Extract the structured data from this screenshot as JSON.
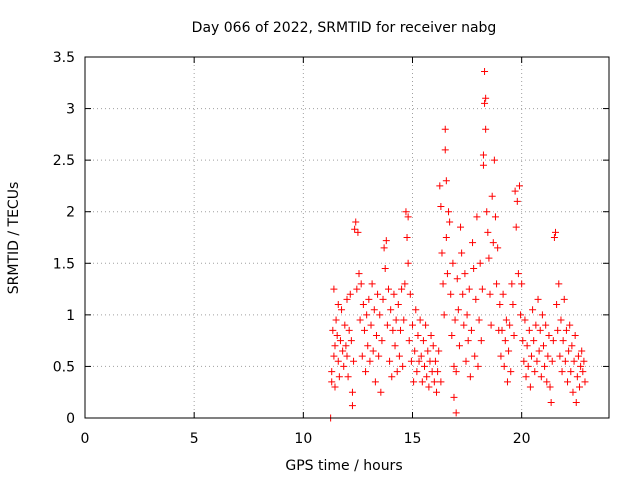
{
  "chart_data": {
    "type": "scatter",
    "title": "Day 066 of 2022, SRMTID for receiver nabg",
    "xlabel": "GPS time / hours",
    "ylabel": "SRMTID / TECUs",
    "xlim": [
      0,
      24
    ],
    "ylim": [
      0,
      3.5
    ],
    "x_ticks": [
      0,
      5,
      10,
      15,
      20
    ],
    "y_ticks": [
      0,
      0.5,
      1,
      1.5,
      2,
      2.5,
      3,
      3.5
    ],
    "x_tick_labels": [
      "0",
      "5",
      "10",
      "15",
      "20"
    ],
    "y_tick_labels": [
      "0",
      "0.5",
      "1",
      "1.5",
      "2",
      "2.5",
      "3",
      "3.5"
    ],
    "grid": true,
    "legend": "none",
    "series": [
      {
        "marker": "plus",
        "color": "#ff0000",
        "points": [
          [
            11.25,
            0.0
          ],
          [
            11.3,
            0.45
          ],
          [
            11.3,
            0.35
          ],
          [
            11.35,
            0.85
          ],
          [
            11.4,
            0.6
          ],
          [
            11.4,
            1.25
          ],
          [
            11.45,
            0.7
          ],
          [
            11.45,
            0.3
          ],
          [
            11.5,
            0.95
          ],
          [
            11.55,
            0.8
          ],
          [
            11.6,
            0.55
          ],
          [
            11.6,
            1.1
          ],
          [
            11.65,
            0.4
          ],
          [
            11.7,
            0.75
          ],
          [
            11.75,
            1.05
          ],
          [
            11.8,
            0.65
          ],
          [
            11.85,
            0.5
          ],
          [
            11.9,
            0.9
          ],
          [
            11.95,
            0.7
          ],
          [
            12.0,
            0.6
          ],
          [
            12.0,
            1.15
          ],
          [
            12.05,
            0.4
          ],
          [
            12.1,
            0.85
          ],
          [
            12.15,
            1.2
          ],
          [
            12.2,
            0.75
          ],
          [
            12.25,
            0.25
          ],
          [
            12.25,
            0.12
          ],
          [
            12.3,
            0.55
          ],
          [
            12.35,
            1.83
          ],
          [
            12.4,
            1.9
          ],
          [
            12.45,
            1.25
          ],
          [
            12.5,
            1.8
          ],
          [
            12.55,
            1.4
          ],
          [
            12.6,
            0.95
          ],
          [
            12.65,
            1.3
          ],
          [
            12.7,
            0.6
          ],
          [
            12.75,
            1.1
          ],
          [
            12.8,
            0.85
          ],
          [
            12.85,
            0.45
          ],
          [
            12.9,
            1.0
          ],
          [
            12.95,
            0.7
          ],
          [
            13.0,
            1.15
          ],
          [
            13.05,
            0.55
          ],
          [
            13.1,
            0.9
          ],
          [
            13.15,
            1.3
          ],
          [
            13.2,
            0.65
          ],
          [
            13.25,
            1.05
          ],
          [
            13.3,
            0.35
          ],
          [
            13.35,
            0.8
          ],
          [
            13.4,
            1.2
          ],
          [
            13.45,
            0.6
          ],
          [
            13.5,
            1.0
          ],
          [
            13.55,
            0.25
          ],
          [
            13.6,
            0.75
          ],
          [
            13.65,
            1.15
          ],
          [
            13.7,
            1.65
          ],
          [
            13.75,
            1.45
          ],
          [
            13.8,
            1.72
          ],
          [
            13.85,
            0.9
          ],
          [
            13.9,
            1.25
          ],
          [
            13.95,
            0.55
          ],
          [
            14.0,
            1.05
          ],
          [
            14.05,
            0.4
          ],
          [
            14.1,
            0.85
          ],
          [
            14.15,
            1.2
          ],
          [
            14.2,
            0.7
          ],
          [
            14.25,
            0.95
          ],
          [
            14.3,
            0.45
          ],
          [
            14.35,
            1.1
          ],
          [
            14.4,
            0.6
          ],
          [
            14.45,
            0.85
          ],
          [
            14.5,
            1.25
          ],
          [
            14.55,
            0.5
          ],
          [
            14.6,
            0.95
          ],
          [
            14.65,
            1.3
          ],
          [
            14.7,
            2.0
          ],
          [
            14.75,
            1.75
          ],
          [
            14.8,
            1.5
          ],
          [
            14.8,
            1.95
          ],
          [
            14.85,
            0.75
          ],
          [
            14.9,
            1.2
          ],
          [
            14.95,
            0.55
          ],
          [
            15.0,
            0.9
          ],
          [
            15.05,
            0.35
          ],
          [
            15.1,
            0.65
          ],
          [
            15.15,
            1.05
          ],
          [
            15.2,
            0.45
          ],
          [
            15.25,
            0.8
          ],
          [
            15.3,
            0.55
          ],
          [
            15.35,
            0.95
          ],
          [
            15.4,
            0.6
          ],
          [
            15.45,
            0.35
          ],
          [
            15.5,
            0.75
          ],
          [
            15.55,
            0.5
          ],
          [
            15.6,
            0.9
          ],
          [
            15.65,
            0.4
          ],
          [
            15.7,
            0.65
          ],
          [
            15.75,
            0.3
          ],
          [
            15.8,
            0.55
          ],
          [
            15.85,
            0.8
          ],
          [
            15.9,
            0.45
          ],
          [
            15.95,
            0.7
          ],
          [
            16.0,
            0.35
          ],
          [
            16.05,
            0.55
          ],
          [
            16.1,
            0.25
          ],
          [
            16.15,
            0.45
          ],
          [
            16.2,
            0.65
          ],
          [
            16.25,
            2.25
          ],
          [
            16.3,
            2.05
          ],
          [
            16.3,
            0.35
          ],
          [
            16.35,
            1.6
          ],
          [
            16.4,
            1.3
          ],
          [
            16.45,
            1.0
          ],
          [
            16.5,
            2.8
          ],
          [
            16.5,
            2.6
          ],
          [
            16.55,
            2.3
          ],
          [
            16.55,
            1.75
          ],
          [
            16.6,
            1.4
          ],
          [
            16.65,
            2.0
          ],
          [
            16.7,
            1.9
          ],
          [
            16.75,
            1.2
          ],
          [
            16.8,
            0.8
          ],
          [
            16.85,
            1.5
          ],
          [
            16.9,
            0.5
          ],
          [
            16.9,
            0.2
          ],
          [
            16.95,
            0.95
          ],
          [
            17.0,
            0.45
          ],
          [
            17.0,
            0.05
          ],
          [
            17.05,
            1.35
          ],
          [
            17.1,
            1.05
          ],
          [
            17.15,
            0.7
          ],
          [
            17.2,
            1.85
          ],
          [
            17.25,
            1.6
          ],
          [
            17.3,
            1.2
          ],
          [
            17.35,
            0.9
          ],
          [
            17.4,
            1.4
          ],
          [
            17.45,
            0.55
          ],
          [
            17.5,
            1.0
          ],
          [
            17.55,
            0.75
          ],
          [
            17.6,
            1.25
          ],
          [
            17.65,
            0.4
          ],
          [
            17.7,
            0.85
          ],
          [
            17.75,
            1.7
          ],
          [
            17.8,
            1.45
          ],
          [
            17.85,
            0.6
          ],
          [
            17.9,
            1.15
          ],
          [
            17.95,
            1.95
          ],
          [
            18.0,
            0.5
          ],
          [
            18.05,
            0.95
          ],
          [
            18.1,
            1.5
          ],
          [
            18.15,
            0.75
          ],
          [
            18.2,
            1.25
          ],
          [
            18.25,
            2.45
          ],
          [
            18.25,
            2.55
          ],
          [
            18.3,
            3.05
          ],
          [
            18.3,
            3.36
          ],
          [
            18.35,
            2.8
          ],
          [
            18.35,
            3.1
          ],
          [
            18.4,
            2.0
          ],
          [
            18.45,
            1.8
          ],
          [
            18.5,
            1.55
          ],
          [
            18.55,
            1.2
          ],
          [
            18.6,
            0.9
          ],
          [
            18.65,
            2.15
          ],
          [
            18.7,
            1.7
          ],
          [
            18.75,
            2.5
          ],
          [
            18.8,
            1.95
          ],
          [
            18.85,
            1.3
          ],
          [
            18.9,
            1.65
          ],
          [
            18.95,
            0.85
          ],
          [
            19.0,
            1.1
          ],
          [
            19.05,
            0.6
          ],
          [
            19.1,
            0.85
          ],
          [
            19.15,
            1.2
          ],
          [
            19.2,
            0.5
          ],
          [
            19.25,
            0.75
          ],
          [
            19.3,
            0.95
          ],
          [
            19.35,
            0.35
          ],
          [
            19.4,
            0.65
          ],
          [
            19.45,
            0.9
          ],
          [
            19.5,
            0.45
          ],
          [
            19.55,
            1.3
          ],
          [
            19.6,
            1.1
          ],
          [
            19.65,
            0.8
          ],
          [
            19.7,
            2.2
          ],
          [
            19.75,
            1.85
          ],
          [
            19.8,
            2.1
          ],
          [
            19.85,
            1.4
          ],
          [
            19.9,
            2.25
          ],
          [
            19.95,
            1.0
          ],
          [
            20.0,
            1.3
          ],
          [
            20.05,
            0.75
          ],
          [
            20.1,
            0.55
          ],
          [
            20.15,
            0.95
          ],
          [
            20.2,
            0.4
          ],
          [
            20.25,
            0.7
          ],
          [
            20.3,
            0.5
          ],
          [
            20.35,
            0.85
          ],
          [
            20.4,
            0.3
          ],
          [
            20.45,
            0.6
          ],
          [
            20.5,
            1.05
          ],
          [
            20.55,
            0.75
          ],
          [
            20.6,
            0.45
          ],
          [
            20.65,
            0.9
          ],
          [
            20.7,
            0.55
          ],
          [
            20.75,
            1.15
          ],
          [
            20.8,
            0.65
          ],
          [
            20.85,
            0.85
          ],
          [
            20.9,
            0.4
          ],
          [
            20.95,
            1.0
          ],
          [
            21.0,
            0.7
          ],
          [
            21.05,
            0.5
          ],
          [
            21.1,
            0.9
          ],
          [
            21.15,
            0.35
          ],
          [
            21.2,
            0.6
          ],
          [
            21.25,
            0.8
          ],
          [
            21.3,
            0.3
          ],
          [
            21.35,
            0.15
          ],
          [
            21.4,
            0.55
          ],
          [
            21.45,
            0.75
          ],
          [
            21.5,
            1.75
          ],
          [
            21.55,
            1.8
          ],
          [
            21.6,
            1.1
          ],
          [
            21.65,
            0.85
          ],
          [
            21.7,
            1.3
          ],
          [
            21.75,
            0.6
          ],
          [
            21.8,
            0.95
          ],
          [
            21.85,
            0.45
          ],
          [
            21.9,
            0.75
          ],
          [
            21.95,
            1.15
          ],
          [
            22.0,
            0.55
          ],
          [
            22.05,
            0.85
          ],
          [
            22.1,
            0.35
          ],
          [
            22.15,
            0.65
          ],
          [
            22.2,
            0.9
          ],
          [
            22.25,
            0.45
          ],
          [
            22.3,
            0.7
          ],
          [
            22.35,
            0.25
          ],
          [
            22.4,
            0.55
          ],
          [
            22.45,
            0.8
          ],
          [
            22.5,
            0.15
          ],
          [
            22.55,
            0.4
          ],
          [
            22.6,
            0.6
          ],
          [
            22.65,
            0.3
          ],
          [
            22.7,
            0.5
          ],
          [
            22.75,
            0.65
          ],
          [
            22.8,
            0.45
          ],
          [
            22.85,
            0.55
          ],
          [
            22.9,
            0.35
          ]
        ]
      }
    ]
  }
}
